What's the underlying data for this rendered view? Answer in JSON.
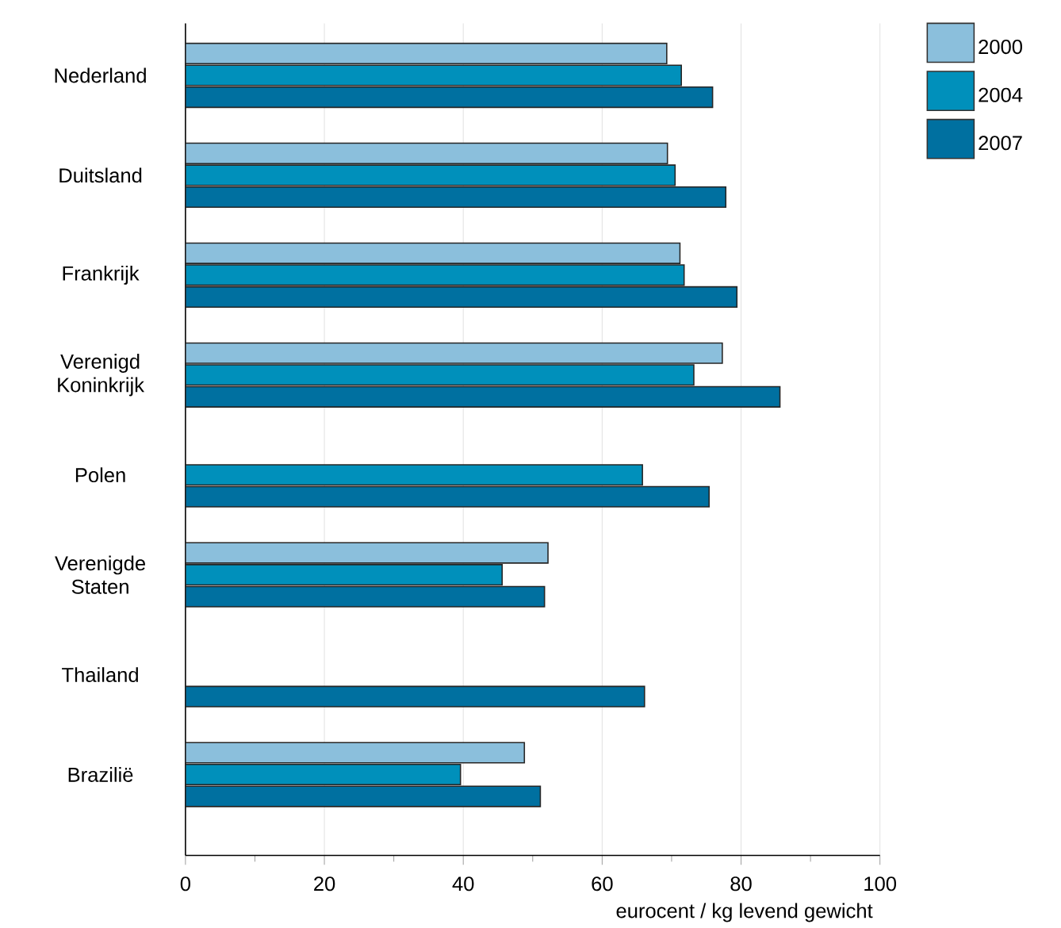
{
  "chart_data": {
    "type": "bar",
    "orientation": "horizontal",
    "xlabel": "eurocent / kg levend gewicht",
    "categories": [
      "Nederland",
      "Duitsland",
      "Frankrijk",
      "Verenigd Koninkrijk",
      "Polen",
      "Verenigde Staten",
      "Thailand",
      "Brazilië"
    ],
    "series": [
      {
        "name": "2000",
        "color": "#8bbfdc",
        "values": [
          69.3,
          69.4,
          71.2,
          77.3,
          null,
          52.2,
          null,
          48.8
        ]
      },
      {
        "name": "2004",
        "color": "#0090bb",
        "values": [
          71.4,
          70.5,
          71.8,
          73.2,
          65.8,
          45.6,
          null,
          39.6
        ]
      },
      {
        "name": "2007",
        "color": "#0070a0",
        "values": [
          75.9,
          77.8,
          79.4,
          85.6,
          75.4,
          51.7,
          66.1,
          51.1
        ]
      }
    ],
    "xlim": [
      0,
      100
    ],
    "xticks": [
      0,
      {
        "value": 10,
        "label": null
      },
      20,
      {
        "value": 30,
        "label": null
      },
      40,
      {
        "value": 50,
        "label": null
      },
      60,
      {
        "value": 70,
        "label": null
      },
      80,
      {
        "value": 90,
        "label": null
      },
      100
    ],
    "grid": "x",
    "legend": "top right"
  }
}
